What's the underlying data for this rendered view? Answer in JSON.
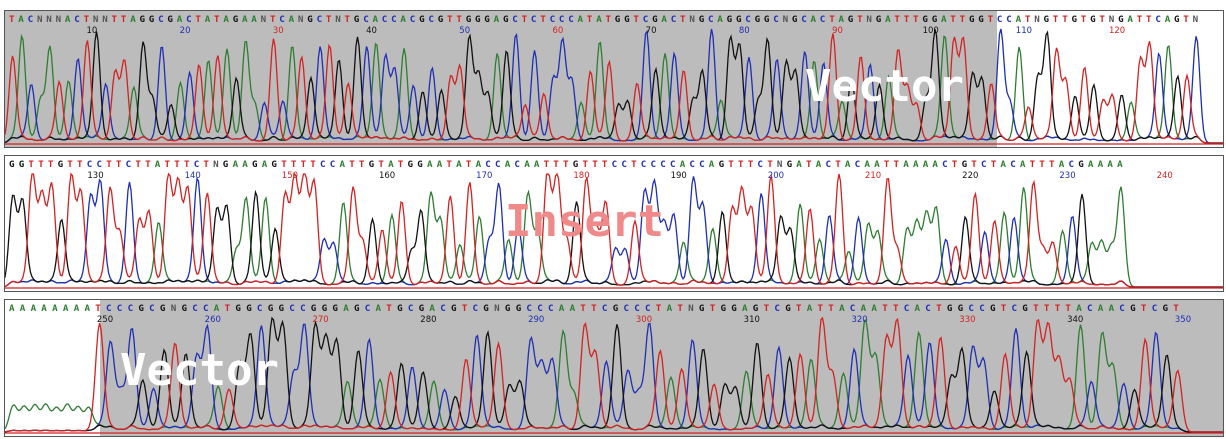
{
  "colors": {
    "A": "#2e7d32",
    "C": "#1f2fb4",
    "G": "#111111",
    "T": "#d32222",
    "N": "#555555",
    "shade": "#bcbcbc",
    "vector_label": "#ffffff",
    "insert_label": "#f08a8a"
  },
  "panels": [
    {
      "sequence": "TACNNNACTNNTTAGGCGACTATAGAANTCANGCTNTGCACCACGCGTTGGGAGCTCTCCCATATGGTCGACTNGCAGGCGGCNGCACTAGTNGATTTGGATTGGTCCATNGTTGTGTNGATTCAGTN",
      "positions": [
        "10",
        "20",
        "30",
        "40",
        "50",
        "60",
        "70",
        "80",
        "90",
        "100",
        "110",
        "120"
      ],
      "label": "Vector"
    },
    {
      "sequence": "GGTTTGTTCCTTCTTATTTCTNGAAGAGTTTTCCATTGTATGGAATATACCACAATTTGTTTCCTCCCCACCAGTTTCTNGATACTACAATTAAAACTGTCTACATTTACGAAAA",
      "positions": [
        "130",
        "140",
        "150",
        "160",
        "170",
        "180",
        "190",
        "200",
        "210",
        "220",
        "230",
        "240"
      ],
      "label": "Insert"
    },
    {
      "sequence": "AAAAAAAATCCCGCGNGCCATGGCGGCCGGGAGCATGCGACGTCGNGGCCCAATTCGCCCTATNGTGGAGTCGTATTACAATTCACTGGCCGTCGTTTTACAACGTCGT",
      "positions": [
        "250",
        "260",
        "270",
        "280",
        "290",
        "300",
        "310",
        "320",
        "330",
        "340",
        "350"
      ],
      "label": "Vector"
    }
  ]
}
